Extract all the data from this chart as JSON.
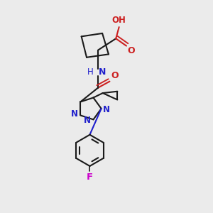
{
  "bg_color": "#ebebeb",
  "bond_color": "#1a1a1a",
  "n_color": "#2020cc",
  "o_color": "#cc2020",
  "f_color": "#cc00cc",
  "line_width": 1.5,
  "fig_size": [
    3.0,
    3.0
  ],
  "dpi": 100,
  "xlim": [
    0,
    10
  ],
  "ylim": [
    0,
    10
  ]
}
